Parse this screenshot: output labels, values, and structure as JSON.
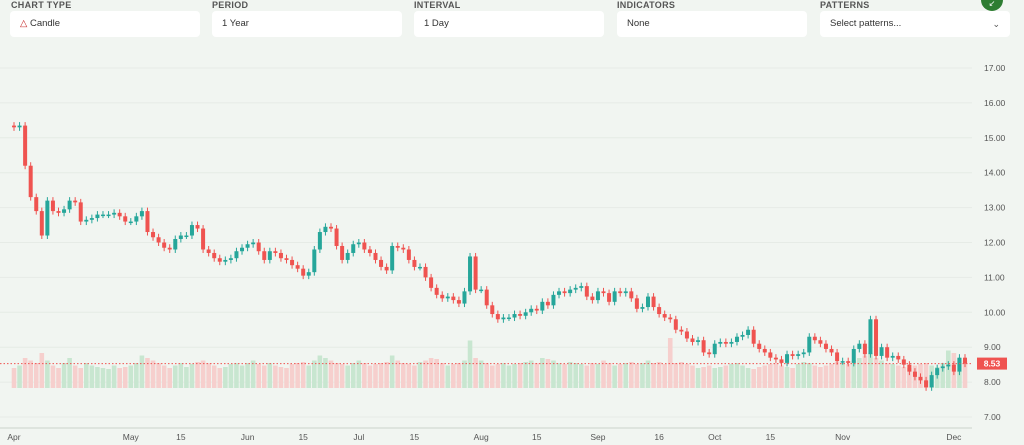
{
  "controls": {
    "chart_type": {
      "label": "CHART TYPE",
      "value": "Candle",
      "icon": "candle-icon"
    },
    "period": {
      "label": "PERIOD",
      "value": "1 Year"
    },
    "interval": {
      "label": "INTERVAL",
      "value": "1 Day"
    },
    "indicators": {
      "label": "INDICATORS",
      "value": "None"
    },
    "patterns": {
      "label": "PATTERNS",
      "placeholder": "Select patterns...",
      "icon": "chevron-down-icon"
    },
    "fab_icon": "expand-icon"
  },
  "colors": {
    "up": "#26a69a",
    "down": "#ef5350",
    "up_vol": "#c8e6d0",
    "down_vol": "#f6cfcd",
    "accent": "#2e7d32"
  },
  "chart_data": {
    "type": "candlestick",
    "ylim": [
      7,
      17.3
    ],
    "y_ticks": [
      "7.00",
      "8.00",
      "9.00",
      "10.00",
      "11.00",
      "12.00",
      "13.00",
      "14.00",
      "15.00",
      "16.00",
      "17.00"
    ],
    "x_ticks": [
      {
        "label": "Apr",
        "day": 0
      },
      {
        "label": "May",
        "day": 21
      },
      {
        "label": "15",
        "day": 30
      },
      {
        "label": "Jun",
        "day": 42
      },
      {
        "label": "15",
        "day": 52
      },
      {
        "label": "Jul",
        "day": 62
      },
      {
        "label": "15",
        "day": 72
      },
      {
        "label": "Aug",
        "day": 84
      },
      {
        "label": "15",
        "day": 94
      },
      {
        "label": "Sep",
        "day": 105
      },
      {
        "label": "16",
        "day": 116
      },
      {
        "label": "Oct",
        "day": 126
      },
      {
        "label": "15",
        "day": 136
      },
      {
        "label": "Nov",
        "day": 149
      },
      {
        "label": "Dec",
        "day": 169
      }
    ],
    "last_price": "8.53",
    "close": [
      15.3,
      15.35,
      14.2,
      13.3,
      12.9,
      12.2,
      13.2,
      12.9,
      12.85,
      12.95,
      13.2,
      13.15,
      12.6,
      12.65,
      12.7,
      12.8,
      12.8,
      12.8,
      12.85,
      12.75,
      12.6,
      12.6,
      12.75,
      12.9,
      12.3,
      12.15,
      12.0,
      11.85,
      11.8,
      12.1,
      12.2,
      12.2,
      12.5,
      12.4,
      11.8,
      11.7,
      11.55,
      11.45,
      11.5,
      11.55,
      11.75,
      11.85,
      11.95,
      12.0,
      11.75,
      11.5,
      11.75,
      11.7,
      11.55,
      11.5,
      11.35,
      11.25,
      11.05,
      11.15,
      11.8,
      12.3,
      12.45,
      12.4,
      11.9,
      11.5,
      11.7,
      11.95,
      12.0,
      11.8,
      11.7,
      11.5,
      11.3,
      11.2,
      11.9,
      11.85,
      11.8,
      11.5,
      11.3,
      11.3,
      11.0,
      10.7,
      10.5,
      10.4,
      10.45,
      10.35,
      10.25,
      10.6,
      11.6,
      10.65,
      10.65,
      10.2,
      9.95,
      9.8,
      9.85,
      9.85,
      9.95,
      9.9,
      10.0,
      10.1,
      10.05,
      10.3,
      10.2,
      10.5,
      10.6,
      10.55,
      10.65,
      10.7,
      10.75,
      10.45,
      10.35,
      10.6,
      10.55,
      10.3,
      10.6,
      10.55,
      10.6,
      10.4,
      10.1,
      10.15,
      10.45,
      10.15,
      9.95,
      9.85,
      9.8,
      9.5,
      9.45,
      9.25,
      9.15,
      9.2,
      8.85,
      8.8,
      9.1,
      9.15,
      9.1,
      9.15,
      9.3,
      9.35,
      9.5,
      9.1,
      8.95,
      8.85,
      8.7,
      8.65,
      8.55,
      8.8,
      8.75,
      8.8,
      8.85,
      9.3,
      9.2,
      9.1,
      8.95,
      8.85,
      8.6,
      8.6,
      8.55,
      8.95,
      9.1,
      8.8,
      9.8,
      8.75,
      9.0,
      8.7,
      8.75,
      8.65,
      8.5,
      8.3,
      8.15,
      8.05,
      7.85,
      8.2,
      8.4,
      8.45,
      8.5,
      8.3,
      8.7,
      8.53
    ],
    "volume": [
      40,
      45,
      60,
      55,
      50,
      70,
      55,
      45,
      40,
      50,
      60,
      45,
      40,
      50,
      45,
      42,
      40,
      38,
      45,
      40,
      42,
      45,
      50,
      65,
      60,
      55,
      50,
      45,
      40,
      45,
      50,
      42,
      48,
      52,
      55,
      50,
      45,
      40,
      42,
      48,
      50,
      45,
      50,
      55,
      48,
      45,
      50,
      45,
      42,
      40,
      48,
      50,
      52,
      45,
      55,
      65,
      60,
      55,
      50,
      48,
      45,
      50,
      55,
      50,
      45,
      48,
      50,
      52,
      65,
      55,
      50,
      48,
      45,
      52,
      55,
      60,
      58,
      50,
      45,
      48,
      50,
      55,
      95,
      60,
      55,
      50,
      45,
      48,
      50,
      45,
      48,
      50,
      52,
      55,
      50,
      60,
      58,
      55,
      50,
      48,
      52,
      50,
      48,
      45,
      50,
      48,
      55,
      50,
      45,
      48,
      50,
      52,
      48,
      50,
      55,
      50,
      52,
      48,
      100,
      50,
      52,
      48,
      45,
      40,
      42,
      45,
      40,
      42,
      45,
      48,
      50,
      45,
      40,
      38,
      42,
      45,
      48,
      50,
      45,
      42,
      40,
      48,
      52,
      50,
      45,
      42,
      45,
      48,
      52,
      50,
      48,
      55,
      60,
      65,
      70,
      60,
      55,
      50,
      48,
      45,
      42,
      40,
      45,
      48,
      50,
      45,
      42,
      50,
      75,
      70,
      60,
      55
    ]
  }
}
